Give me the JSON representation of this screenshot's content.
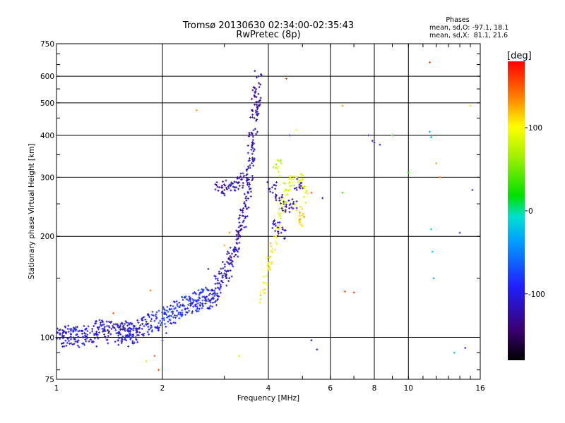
{
  "chart_data": {
    "type": "scatter",
    "title": "Tromsø 20130630 02:34:00-02:35:43",
    "subtitle": "RwPretec (8p)",
    "phases": {
      "heading": "Phases",
      "line_o": "mean, sd,O: -97.1, 18.1",
      "line_x": "mean, sd,X:  81.1, 21.6"
    },
    "xlabel": "Frequency [MHz]",
    "ylabel": "Stationary phase Virtual Height [km]",
    "x_scale": "log",
    "y_scale": "log",
    "xlim": [
      1,
      16
    ],
    "ylim": [
      75,
      750
    ],
    "x_ticks": [
      1,
      2,
      4,
      6,
      8,
      10,
      16
    ],
    "x_tick_labels": [
      "1",
      "2",
      "4",
      "6",
      "8",
      "10",
      "16"
    ],
    "y_ticks": [
      75,
      100,
      200,
      300,
      400,
      500,
      600,
      750
    ],
    "y_tick_labels": [
      "75",
      "100",
      "200",
      "300",
      "400",
      "500",
      "600",
      "750"
    ],
    "grid": true,
    "colorbar": {
      "label": "[deg]",
      "min": -180,
      "max": 180,
      "ticks": [
        -100,
        0,
        100
      ],
      "tick_labels": [
        "-100",
        "0",
        "100"
      ]
    },
    "trace_o": [
      [
        1.0,
        100,
        -100
      ],
      [
        1.05,
        101,
        -110
      ],
      [
        1.1,
        102,
        -105
      ],
      [
        1.15,
        100,
        -95
      ],
      [
        1.2,
        103,
        -100
      ],
      [
        1.3,
        104,
        -110
      ],
      [
        1.35,
        106,
        -100
      ],
      [
        1.4,
        105,
        -115
      ],
      [
        1.5,
        103,
        -100
      ],
      [
        1.55,
        107,
        -110
      ],
      [
        1.6,
        104,
        -95
      ],
      [
        1.65,
        102,
        -105
      ],
      [
        1.7,
        106,
        -110
      ],
      [
        1.8,
        109,
        -100
      ],
      [
        1.9,
        112,
        -90
      ],
      [
        2.0,
        114,
        -80
      ],
      [
        2.1,
        116,
        -85
      ],
      [
        2.2,
        120,
        -90
      ],
      [
        2.3,
        124,
        -80
      ],
      [
        2.4,
        126,
        -95
      ],
      [
        2.5,
        128,
        -90
      ],
      [
        2.6,
        132,
        -85
      ],
      [
        2.7,
        130,
        -100
      ],
      [
        2.8,
        135,
        -95
      ],
      [
        2.9,
        145,
        -110
      ],
      [
        3.0,
        155,
        -110
      ],
      [
        3.1,
        165,
        -120
      ],
      [
        3.2,
        180,
        -115
      ],
      [
        3.3,
        200,
        -125
      ],
      [
        3.4,
        230,
        -120
      ],
      [
        3.5,
        270,
        -120
      ],
      [
        3.55,
        320,
        -115
      ],
      [
        3.6,
        380,
        -120
      ],
      [
        3.65,
        450,
        -125
      ],
      [
        3.7,
        520,
        -130
      ],
      [
        3.75,
        600,
        -125
      ]
    ],
    "trace_x": [
      [
        3.8,
        130,
        110
      ],
      [
        3.9,
        145,
        100
      ],
      [
        4.0,
        165,
        95
      ],
      [
        4.1,
        180,
        105
      ],
      [
        4.2,
        200,
        100
      ],
      [
        4.3,
        230,
        90
      ],
      [
        4.4,
        250,
        80
      ],
      [
        4.5,
        275,
        85
      ],
      [
        4.6,
        290,
        90
      ],
      [
        4.8,
        300,
        95
      ],
      [
        5.0,
        295,
        85
      ],
      [
        5.1,
        270,
        90
      ],
      [
        4.9,
        230,
        110
      ],
      [
        5.0,
        215,
        110
      ],
      [
        4.2,
        320,
        70
      ],
      [
        4.35,
        330,
        75
      ]
    ],
    "cluster_o": [
      [
        2.9,
        280,
        -130
      ],
      [
        3.0,
        275,
        -125
      ],
      [
        3.1,
        285,
        -120
      ],
      [
        3.2,
        280,
        -115
      ],
      [
        3.3,
        290,
        -120
      ],
      [
        3.4,
        300,
        -115
      ],
      [
        4.1,
        280,
        -120
      ],
      [
        4.3,
        260,
        -125
      ],
      [
        4.5,
        245,
        -120
      ],
      [
        4.7,
        250,
        -115
      ],
      [
        4.9,
        285,
        -110
      ],
      [
        4.2,
        215,
        -115
      ],
      [
        4.35,
        205,
        -120
      ]
    ],
    "scatter": [
      [
        1.1,
        96,
        -100
      ],
      [
        1.2,
        95,
        -100
      ],
      [
        1.3,
        94,
        -110
      ],
      [
        1.4,
        96,
        -95
      ],
      [
        1.5,
        95,
        -100
      ],
      [
        1.6,
        94,
        -105
      ],
      [
        2.0,
        98,
        -90
      ],
      [
        2.05,
        103,
        -100
      ],
      [
        1.45,
        118,
        150
      ],
      [
        1.85,
        138,
        140
      ],
      [
        1.9,
        88,
        150
      ],
      [
        1.95,
        80,
        150
      ],
      [
        1.8,
        85,
        110
      ],
      [
        2.5,
        475,
        130
      ],
      [
        2.7,
        160,
        -120
      ],
      [
        3.3,
        88,
        80
      ],
      [
        3.0,
        188,
        120
      ],
      [
        3.1,
        205,
        130
      ],
      [
        4.5,
        590,
        160
      ],
      [
        4.8,
        415,
        100
      ],
      [
        4.6,
        400,
        -90
      ],
      [
        5.3,
        270,
        150
      ],
      [
        5.7,
        260,
        -120
      ],
      [
        5.3,
        98,
        -150
      ],
      [
        5.5,
        92,
        -130
      ],
      [
        6.5,
        490,
        130
      ],
      [
        6.5,
        270,
        30
      ],
      [
        6.6,
        137,
        155
      ],
      [
        7.0,
        136,
        170
      ],
      [
        7.7,
        400,
        -100
      ],
      [
        7.9,
        385,
        -110
      ],
      [
        8.0,
        380,
        -120
      ],
      [
        8.3,
        375,
        -100
      ],
      [
        9.0,
        400,
        30
      ],
      [
        10.0,
        310,
        20
      ],
      [
        11.5,
        660,
        160
      ],
      [
        11.5,
        410,
        -30
      ],
      [
        11.6,
        395,
        -30
      ],
      [
        11.6,
        210,
        -10
      ],
      [
        11.7,
        180,
        -20
      ],
      [
        11.8,
        150,
        -40
      ],
      [
        12.0,
        330,
        130
      ],
      [
        12.3,
        300,
        140
      ],
      [
        13.5,
        90,
        -20
      ],
      [
        14.0,
        205,
        -100
      ],
      [
        14.5,
        93,
        -100
      ],
      [
        15.0,
        490,
        110
      ],
      [
        15.2,
        275,
        -110
      ]
    ]
  }
}
